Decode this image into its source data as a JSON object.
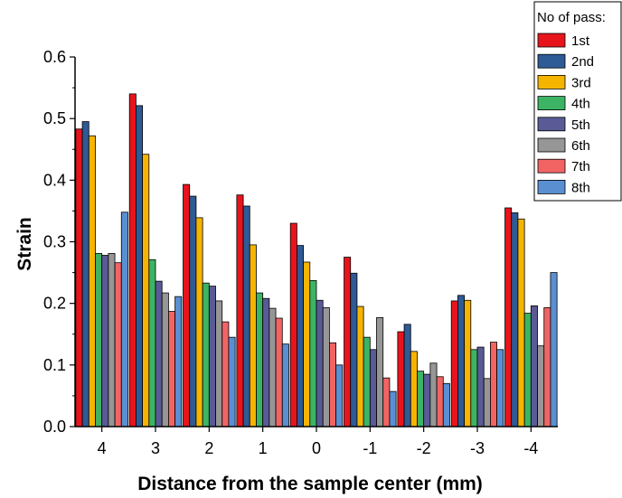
{
  "chart_data": {
    "type": "bar",
    "xlabel": "Distance from the sample center (mm)",
    "ylabel": "Strain",
    "ylim": [
      0,
      0.6
    ],
    "yticks": [
      "0.0",
      "0.1",
      "0.2",
      "0.3",
      "0.4",
      "0.5",
      "0.6"
    ],
    "categories": [
      "4",
      "3",
      "2",
      "1",
      "0",
      "-1",
      "-2",
      "-3",
      "-4"
    ],
    "legend_title": "No of pass:",
    "legend_position": "top-right",
    "grid": false,
    "series": [
      {
        "name": "1st",
        "color": "#e8141c",
        "values": [
          0.483,
          0.54,
          0.393,
          0.376,
          0.33,
          0.275,
          0.154,
          0.204,
          0.355
        ]
      },
      {
        "name": "2nd",
        "color": "#2e5a96",
        "values": [
          0.495,
          0.521,
          0.374,
          0.358,
          0.294,
          0.249,
          0.166,
          0.213,
          0.347
        ]
      },
      {
        "name": "3rd",
        "color": "#f5b400",
        "values": [
          0.472,
          0.442,
          0.339,
          0.295,
          0.267,
          0.195,
          0.122,
          0.205,
          0.337
        ]
      },
      {
        "name": "4th",
        "color": "#3cb464",
        "values": [
          0.281,
          0.271,
          0.233,
          0.217,
          0.237,
          0.145,
          0.09,
          0.125,
          0.184
        ]
      },
      {
        "name": "5th",
        "color": "#5a5a96",
        "values": [
          0.278,
          0.236,
          0.228,
          0.208,
          0.205,
          0.125,
          0.085,
          0.129,
          0.196
        ]
      },
      {
        "name": "6th",
        "color": "#969696",
        "values": [
          0.281,
          0.217,
          0.204,
          0.192,
          0.193,
          0.177,
          0.103,
          0.078,
          0.131
        ]
      },
      {
        "name": "7th",
        "color": "#f26464",
        "values": [
          0.266,
          0.187,
          0.17,
          0.176,
          0.136,
          0.079,
          0.081,
          0.137,
          0.193
        ]
      },
      {
        "name": "8th",
        "color": "#5a8fd2",
        "values": [
          0.348,
          0.211,
          0.145,
          0.134,
          0.1,
          0.057,
          0.07,
          0.125,
          0.25
        ]
      }
    ]
  }
}
